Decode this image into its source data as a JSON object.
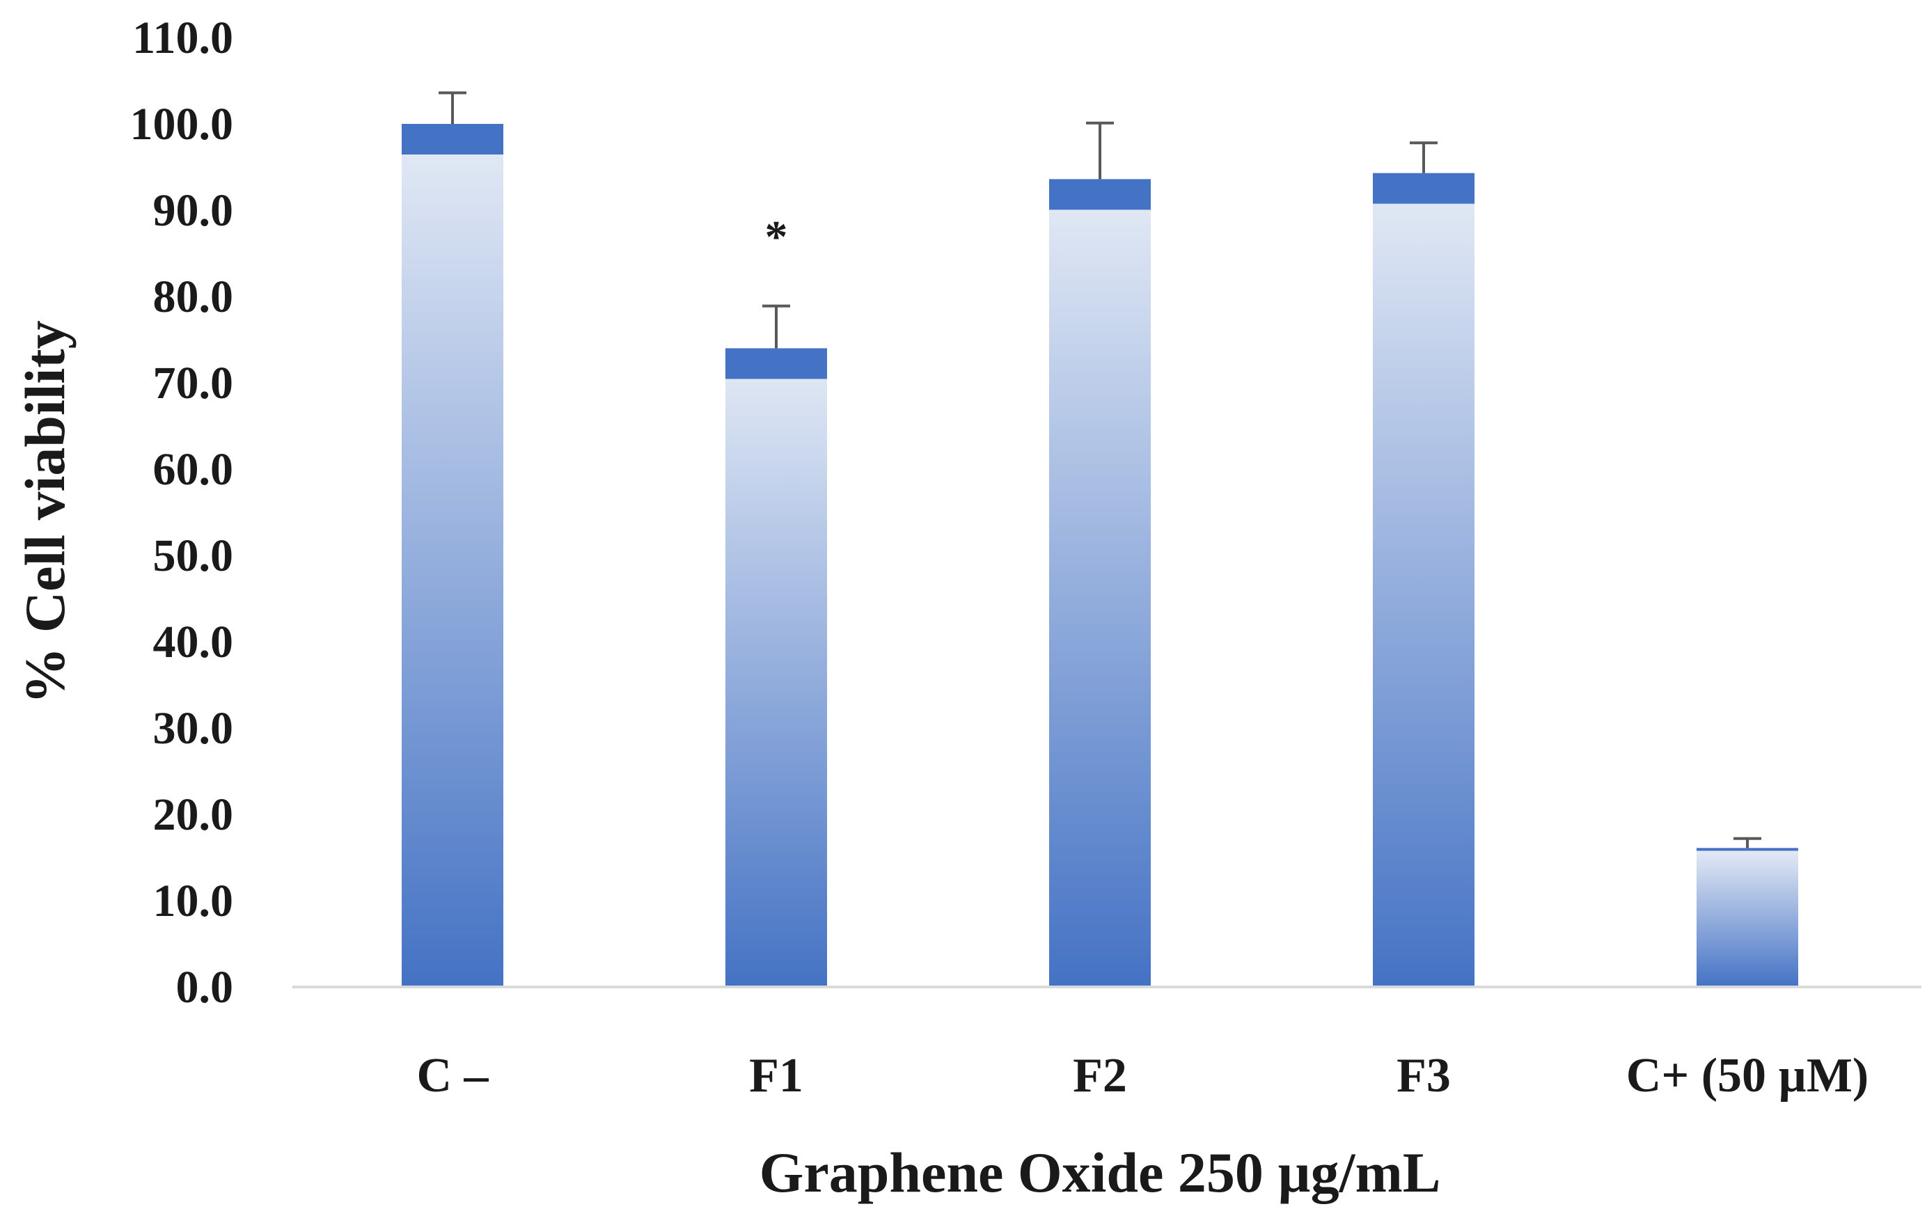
{
  "chart_data": {
    "type": "bar",
    "title": "",
    "xlabel": "Graphene Oxide 250 µg/mL",
    "ylabel": "% Cell viability",
    "categories": [
      "C –",
      "F1",
      "F2",
      "F3",
      "C+ (50 µM)"
    ],
    "values": [
      100.0,
      74.0,
      93.6,
      94.3,
      16.1
    ],
    "errors": [
      3.6,
      4.9,
      6.5,
      3.5,
      1.1
    ],
    "ylim": [
      0,
      110
    ],
    "yticks": [
      "0.0",
      "10.0",
      "20.0",
      "30.0",
      "40.0",
      "50.0",
      "60.0",
      "70.0",
      "80.0",
      "90.0",
      "100.0",
      "110.0"
    ],
    "annotations": [
      {
        "category": "F1",
        "text": "*"
      }
    ],
    "grid": false,
    "legend": "none",
    "colors": {
      "bar_top": "#4472c4",
      "bar_gradient_light": "#e6ecf6",
      "bar_gradient_dark": "#4472c4",
      "error_bar": "#595959",
      "baseline": "#d9d9d9",
      "text": "#1a1a1a"
    }
  }
}
